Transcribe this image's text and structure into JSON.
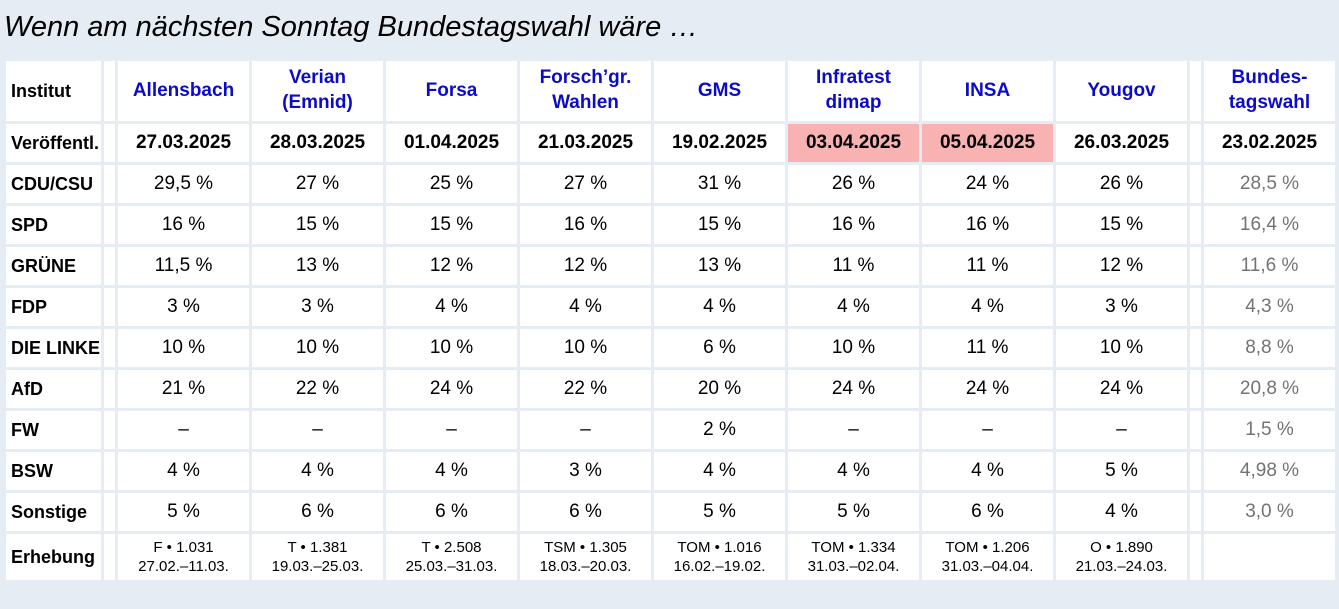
{
  "title": "Wenn am nächsten Sonntag Bundestagswahl wäre …",
  "colors": {
    "page_bg": "#e6ecf3",
    "cell_bg": "#ffffff",
    "highlight_pink": "#f8b2b2",
    "institute_blue": "#0b0bc8",
    "muted_gray": "#737373"
  },
  "table": {
    "institut_label": "Institut",
    "institutes": [
      "Allensbach",
      "Verian\n(Emnid)",
      "Forsa",
      "Forsch’gr.\nWahlen",
      "GMS",
      "Infratest\ndimap",
      "INSA",
      "Yougov",
      "Bundes-\ntagswahl"
    ],
    "rows": [
      {
        "label": "Veröffentl.",
        "type": "dates",
        "highlight": [
          5,
          6
        ],
        "values": [
          "27.03.2025",
          "28.03.2025",
          "01.04.2025",
          "21.03.2025",
          "19.02.2025",
          "03.04.2025",
          "05.04.2025",
          "26.03.2025",
          "23.02.2025"
        ]
      },
      {
        "label": "CDU/CSU",
        "type": "values",
        "values": [
          "29,5 %",
          "27 %",
          "25 %",
          "27 %",
          "31 %",
          "26 %",
          "24 %",
          "26 %",
          "28,5 %"
        ]
      },
      {
        "label": "SPD",
        "type": "values",
        "values": [
          "16 %",
          "15 %",
          "15 %",
          "16 %",
          "15 %",
          "16 %",
          "16 %",
          "15 %",
          "16,4 %"
        ]
      },
      {
        "label": "GRÜNE",
        "type": "values",
        "values": [
          "11,5 %",
          "13 %",
          "12 %",
          "12 %",
          "13 %",
          "11 %",
          "11 %",
          "12 %",
          "11,6 %"
        ]
      },
      {
        "label": "FDP",
        "type": "values",
        "values": [
          "3 %",
          "3 %",
          "4 %",
          "4 %",
          "4 %",
          "4 %",
          "4 %",
          "3 %",
          "4,3 %"
        ]
      },
      {
        "label": "DIE LINKE",
        "type": "values",
        "values": [
          "10 %",
          "10 %",
          "10 %",
          "10 %",
          "6 %",
          "10 %",
          "11 %",
          "10 %",
          "8,8 %"
        ]
      },
      {
        "label": "AfD",
        "type": "values",
        "values": [
          "21 %",
          "22 %",
          "24 %",
          "22 %",
          "20 %",
          "24 %",
          "24 %",
          "24 %",
          "20,8 %"
        ]
      },
      {
        "label": "FW",
        "type": "values",
        "values": [
          "–",
          "–",
          "–",
          "–",
          "2 %",
          "–",
          "–",
          "–",
          "1,5 %"
        ]
      },
      {
        "label": "BSW",
        "type": "values",
        "values": [
          "4 %",
          "4 %",
          "4 %",
          "3 %",
          "4 %",
          "4 %",
          "4 %",
          "5 %",
          "4,98 %"
        ]
      },
      {
        "label": "Sonstige",
        "type": "values",
        "values": [
          "5 %",
          "6 %",
          "6 %",
          "6 %",
          "5 %",
          "5 %",
          "6 %",
          "4 %",
          "3,0 %"
        ]
      },
      {
        "label": "Erhebung",
        "type": "survey",
        "values": [
          "F • 1.031\n27.02.–11.03.",
          "T • 1.381\n19.03.–25.03.",
          "T • 2.508\n25.03.–31.03.",
          "TSM • 1.305\n18.03.–20.03.",
          "TOM • 1.016\n16.02.–19.02.",
          "TOM • 1.334\n31.03.–02.04.",
          "TOM • 1.206\n31.03.–04.04.",
          "O • 1.890\n21.03.–24.03.",
          ""
        ]
      }
    ]
  },
  "chart_data": {
    "type": "table",
    "title": "Wenn am nächsten Sonntag Bundestagswahl wäre …",
    "row_labels": [
      "CDU/CSU",
      "SPD",
      "GRÜNE",
      "FDP",
      "DIE LINKE",
      "AfD",
      "FW",
      "BSW",
      "Sonstige"
    ],
    "highlighted_columns": [
      "Infratest dimap",
      "INSA"
    ],
    "columns": [
      {
        "name": "Allensbach",
        "published": "27.03.2025",
        "values_pct": [
          29.5,
          16,
          11.5,
          3,
          10,
          21,
          null,
          4,
          5
        ],
        "survey": "F • 1.031, 27.02.–11.03."
      },
      {
        "name": "Verian (Emnid)",
        "published": "28.03.2025",
        "values_pct": [
          27,
          15,
          13,
          3,
          10,
          22,
          null,
          4,
          6
        ],
        "survey": "T • 1.381, 19.03.–25.03."
      },
      {
        "name": "Forsa",
        "published": "01.04.2025",
        "values_pct": [
          25,
          15,
          12,
          4,
          10,
          24,
          null,
          4,
          6
        ],
        "survey": "T • 2.508, 25.03.–31.03."
      },
      {
        "name": "Forsch’gr. Wahlen",
        "published": "21.03.2025",
        "values_pct": [
          27,
          16,
          12,
          4,
          10,
          22,
          null,
          3,
          6
        ],
        "survey": "TSM • 1.305, 18.03.–20.03."
      },
      {
        "name": "GMS",
        "published": "19.02.2025",
        "values_pct": [
          31,
          15,
          13,
          4,
          6,
          20,
          2,
          4,
          5
        ],
        "survey": "TOM • 1.016, 16.02.–19.02."
      },
      {
        "name": "Infratest dimap",
        "published": "03.04.2025",
        "values_pct": [
          26,
          16,
          11,
          4,
          10,
          24,
          null,
          4,
          5
        ],
        "survey": "TOM • 1.334, 31.03.–02.04."
      },
      {
        "name": "INSA",
        "published": "05.04.2025",
        "values_pct": [
          24,
          16,
          11,
          4,
          11,
          24,
          null,
          4,
          6
        ],
        "survey": "TOM • 1.206, 31.03.–04.04."
      },
      {
        "name": "Yougov",
        "published": "26.03.2025",
        "values_pct": [
          26,
          15,
          12,
          3,
          10,
          24,
          null,
          5,
          4
        ],
        "survey": "O • 1.890, 21.03.–24.03."
      },
      {
        "name": "Bundestagswahl",
        "published": "23.02.2025",
        "values_pct": [
          28.5,
          16.4,
          11.6,
          4.3,
          8.8,
          20.8,
          1.5,
          4.98,
          3.0
        ],
        "survey": ""
      }
    ]
  }
}
